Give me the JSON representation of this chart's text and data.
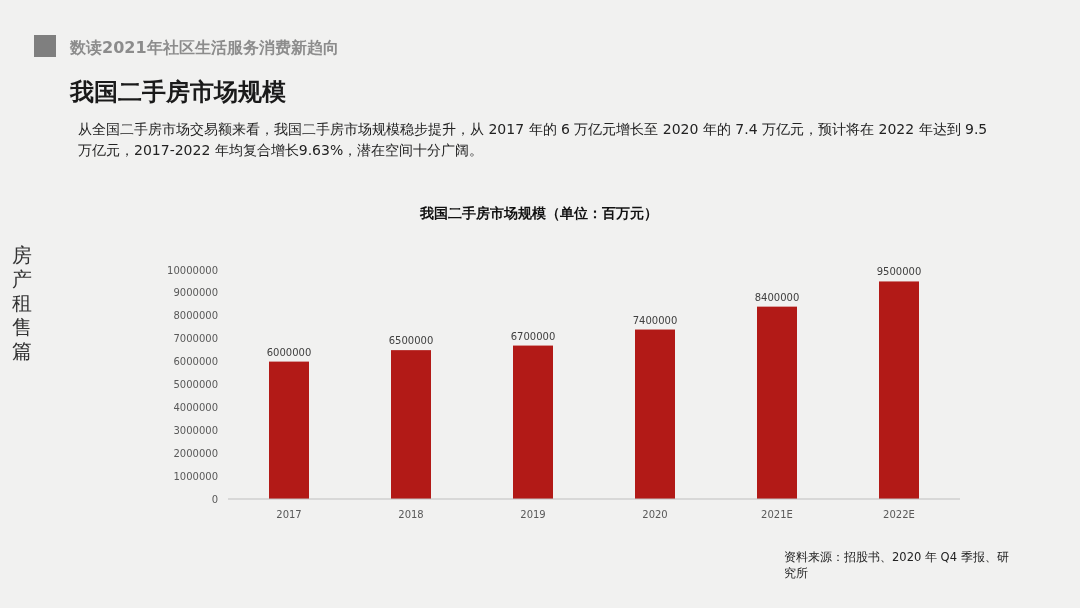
{
  "chart_data": {
    "type": "bar",
    "title": "我国二手房市场规模",
    "subtitle": "我国二手房市场规模（单位：百万元）",
    "categories": [
      "2017",
      "2018",
      "2019",
      "2020",
      "2021E",
      "2022E"
    ],
    "values": [
      6000000,
      6500000,
      6700000,
      7400000,
      8400000,
      9500000
    ],
    "color": "#b21a17",
    "ylim": [
      0,
      10000000
    ],
    "yticks": [
      0,
      1000000,
      2000000,
      3000000,
      4000000,
      5000000,
      6000000,
      7000000,
      8000000,
      9000000,
      10000000
    ],
    "grid": false,
    "data_labels": true,
    "annotations": [
      "数读2021年社区生活服务消费新趋向",
      "从全国二手房市场交易额来看，我国二手房市场规模稳步提升，从 2017 年的 6 万亿元增长至 2020 年的 7.4 万亿元，预计将在 2022 年达到 9.5 万亿元，2017-2022 年均复合增长9.63%，潜在空间十分广阔。",
      "房产租售篇",
      "资料来源：招股书、2020 年 Q4 季报、研究所"
    ]
  }
}
